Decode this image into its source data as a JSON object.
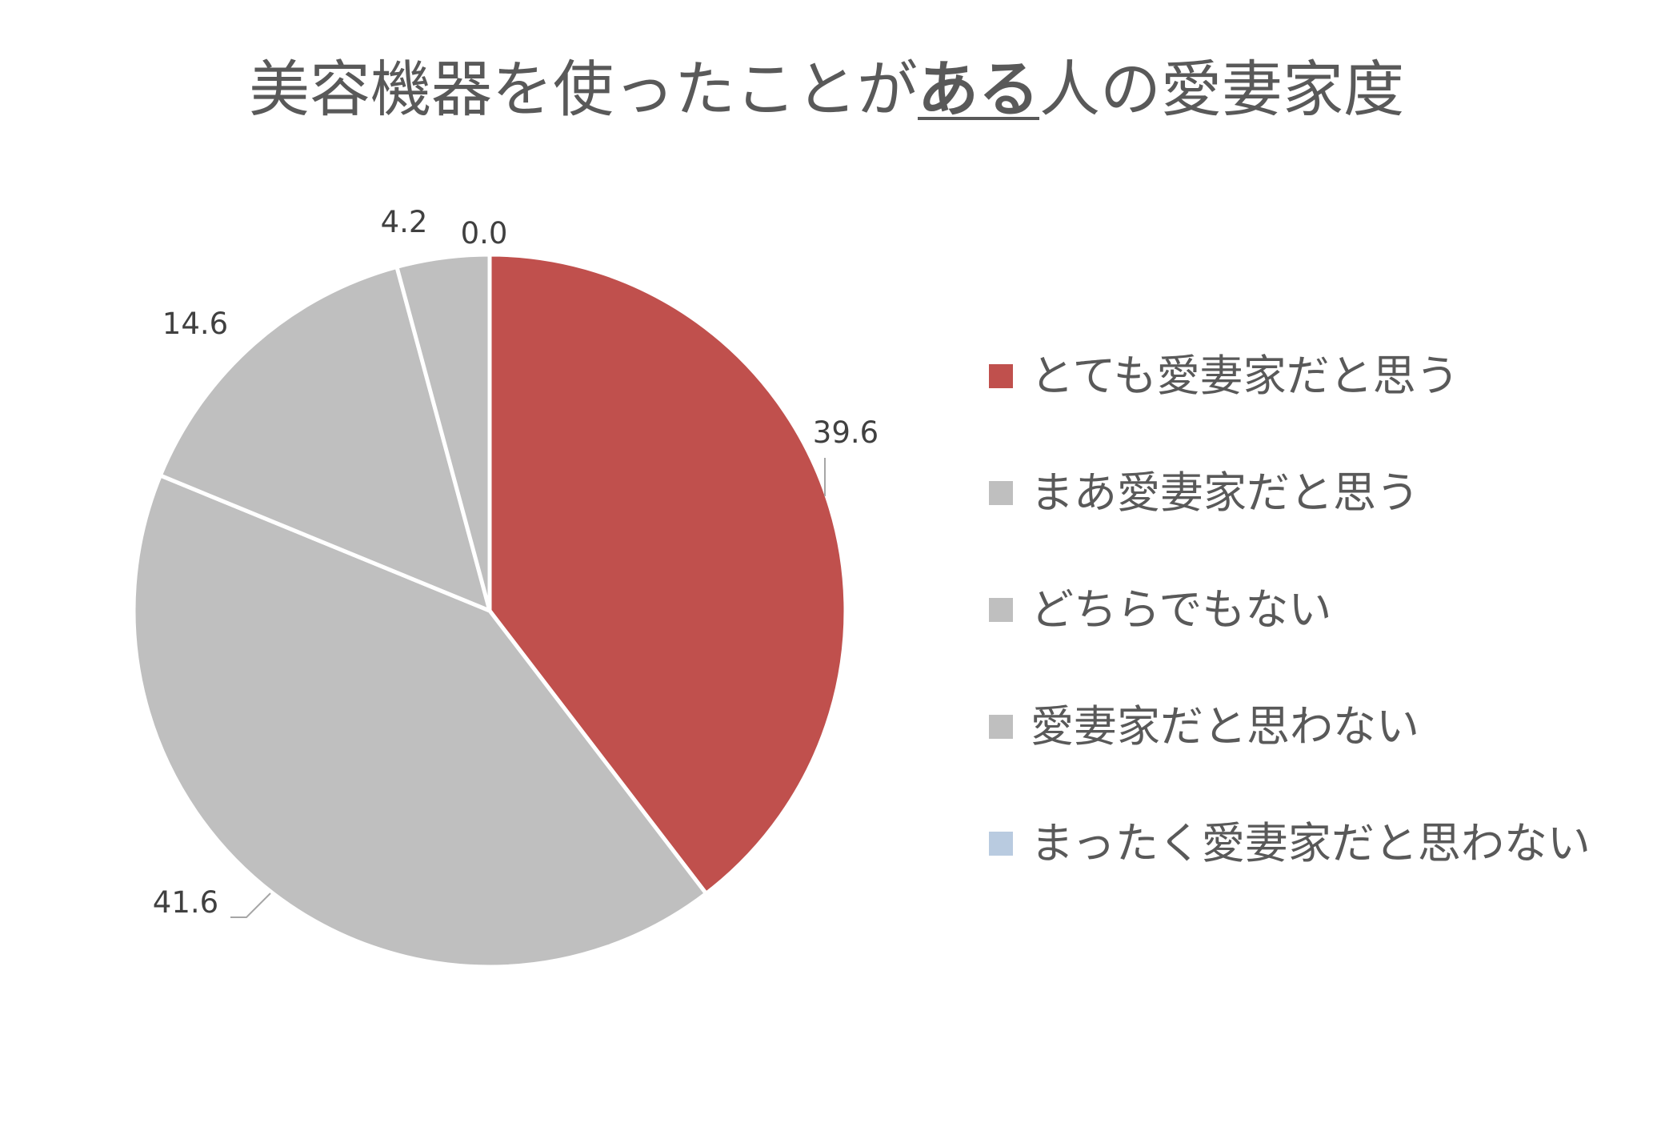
{
  "chart_data": {
    "type": "pie",
    "title_parts": [
      "美容機器を使ったことが",
      "ある",
      "人の愛妻家度"
    ],
    "categories": [
      "とても愛妻家だと思う",
      "まあ愛妻家だと思う",
      "どちらでもない",
      "愛妻家だと思わない",
      "まったく愛妻家だと思わない"
    ],
    "values": [
      39.6,
      41.6,
      14.6,
      4.2,
      0.0
    ],
    "value_labels": [
      "39.6",
      "41.6",
      "14.6",
      "4.2",
      "0.0"
    ],
    "colors": [
      "#C0504D",
      "#BFBFBF",
      "#BFBFBF",
      "#BFBFBF",
      "#B9CBE0"
    ],
    "legend": "right",
    "start_angle": "12 o'clock",
    "direction": "clockwise"
  }
}
